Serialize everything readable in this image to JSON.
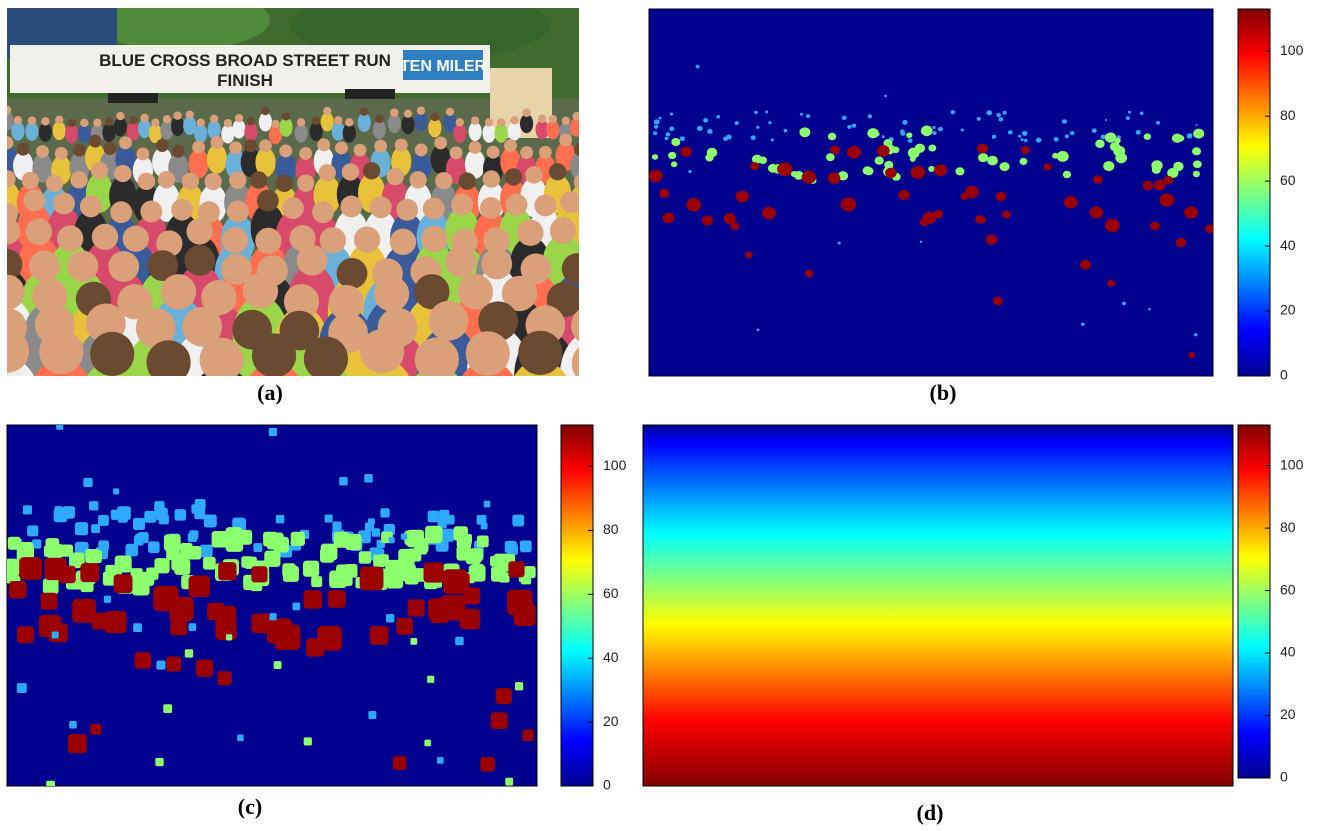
{
  "figure": {
    "panels": [
      {
        "caption": "(a)",
        "banner": {
          "title": "BLUE CROSS BROAD STREET RUN",
          "subtitle": "FINISH",
          "badge": "TEN MILER"
        }
      },
      {
        "caption": "(b)",
        "colorbar": {
          "lim": [
            0,
            113
          ],
          "ticks": [
            0,
            20,
            40,
            60,
            80,
            100
          ]
        }
      },
      {
        "caption": "(c)",
        "colorbar": {
          "lim": [
            0,
            113
          ],
          "ticks": [
            0,
            20,
            40,
            60,
            80,
            100
          ]
        }
      },
      {
        "caption": "(d)",
        "colorbar": {
          "lim": [
            0,
            113
          ],
          "ticks": [
            0,
            20,
            40,
            60,
            80,
            100
          ]
        }
      }
    ]
  }
}
